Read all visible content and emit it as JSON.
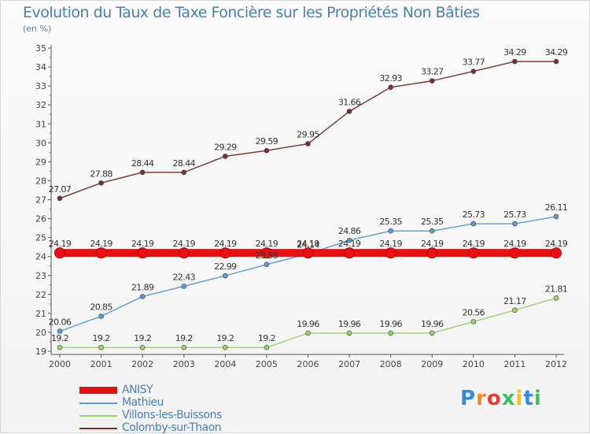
{
  "title": "Evolution du Taux de Taxe Foncière sur les Propriétés Non Bâties",
  "unit_label": "(en %)",
  "logo": {
    "text": [
      "P",
      "r",
      "o",
      "x",
      "i",
      "t",
      "i"
    ]
  },
  "chart_data": {
    "type": "line",
    "x": [
      "2000",
      "2001",
      "2002",
      "2003",
      "2004",
      "2005",
      "2006",
      "2007",
      "2008",
      "2009",
      "2010",
      "2011",
      "2012"
    ],
    "ylim": [
      19,
      35
    ],
    "yticks": [
      "19",
      "20",
      "21",
      "22",
      "23",
      "24",
      "25",
      "26",
      "27",
      "28",
      "29",
      "30",
      "31",
      "32",
      "33",
      "34",
      "35"
    ],
    "grid": false,
    "legend_position": "bottom-left",
    "series": [
      {
        "name": "ANISY",
        "color": "#e81010",
        "values": [
          24.19,
          24.19,
          24.19,
          24.19,
          24.19,
          24.19,
          24.19,
          24.19,
          24.19,
          24.19,
          24.19,
          24.19,
          24.19
        ],
        "labels": [
          "24.19",
          "24.19",
          "24.19",
          "24.19",
          "24.19",
          "24.19",
          "24.19",
          "24.19",
          "24.19",
          "24.19",
          "24.19",
          "24.19",
          "24.19"
        ]
      },
      {
        "name": "Mathieu",
        "color": "#5b9bd5",
        "values": [
          20.06,
          20.85,
          21.89,
          22.43,
          22.99,
          23.58,
          24.14,
          24.86,
          25.35,
          25.35,
          25.73,
          25.73,
          26.11
        ],
        "labels": [
          "20.06",
          "20.85",
          "21.89",
          "22.43",
          "22.99",
          "23.58",
          "24.14",
          "24.86",
          "25.35",
          "25.35",
          "25.73",
          "25.73",
          "26.11"
        ]
      },
      {
        "name": "Villons-les-Buissons",
        "color": "#9ad26a",
        "values": [
          19.2,
          19.2,
          19.2,
          19.2,
          19.2,
          19.2,
          19.96,
          19.96,
          19.96,
          19.96,
          20.56,
          21.17,
          21.81
        ],
        "labels": [
          "19.2",
          "19.2",
          "19.2",
          "19.2",
          "19.2",
          "19.2",
          "19.96",
          "19.96",
          "19.96",
          "19.96",
          "20.56",
          "21.17",
          "21.81"
        ]
      },
      {
        "name": "Colomby-sur-Thaon",
        "color": "#7a2e2e",
        "values": [
          27.07,
          27.88,
          28.44,
          28.44,
          29.29,
          29.59,
          29.95,
          31.66,
          32.93,
          33.27,
          33.77,
          34.29,
          34.29
        ],
        "labels": [
          "27.07",
          "27.88",
          "28.44",
          "28.44",
          "29.29",
          "29.59",
          "29.95",
          "31.66",
          "32.93",
          "33.27",
          "33.77",
          "34.29",
          "34.29"
        ]
      }
    ]
  }
}
